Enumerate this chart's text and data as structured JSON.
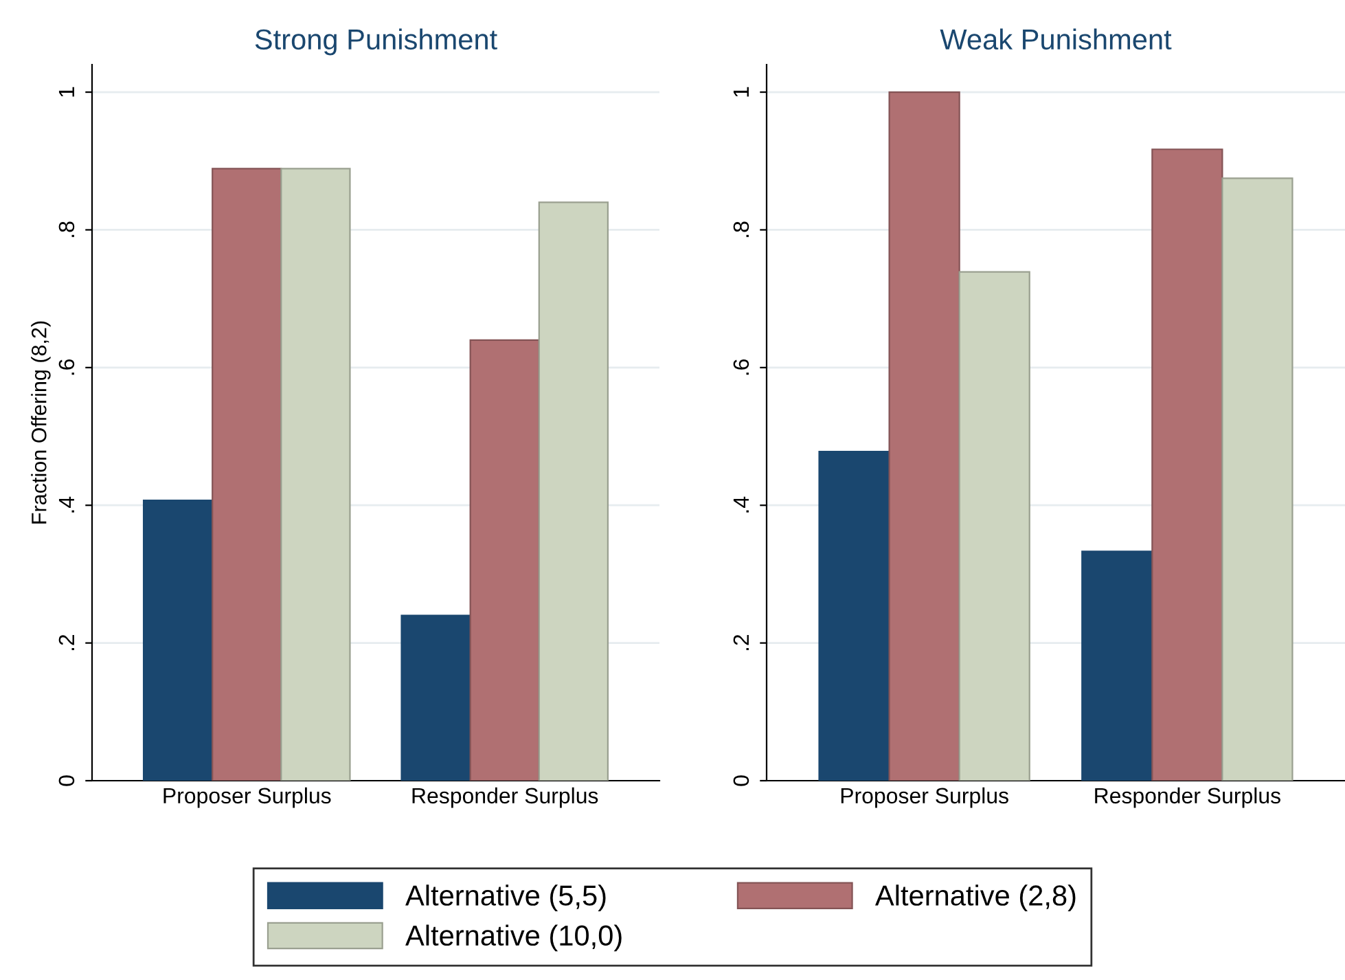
{
  "chart_data": [
    {
      "type": "bar",
      "title": "Strong Punishment",
      "ylabel": "Fraction Offering (8,2)",
      "categories": [
        "Proposer Surplus",
        "Responder Surplus"
      ],
      "series": [
        {
          "name": "Alternative (5,5)",
          "color": "#1a476f",
          "values": [
            0.407,
            0.24
          ]
        },
        {
          "name": "Alternative (2,8)",
          "color": "#b07072",
          "values": [
            0.889,
            0.64
          ]
        },
        {
          "name": "Alternative (10,0)",
          "color": "#cdd5c0",
          "values": [
            0.889,
            0.84
          ]
        }
      ],
      "ylim": [
        0,
        1.04
      ],
      "yticks": [
        {
          "value": 0,
          "label": "0"
        },
        {
          "value": 0.2,
          "label": ".2"
        },
        {
          "value": 0.4,
          "label": ".4"
        },
        {
          "value": 0.6,
          "label": ".6"
        },
        {
          "value": 0.8,
          "label": ".8"
        },
        {
          "value": 1,
          "label": "1"
        }
      ],
      "grid": "y",
      "legend": "bottom"
    },
    {
      "type": "bar",
      "title": "Weak Punishment",
      "categories": [
        "Proposer Surplus",
        "Responder Surplus"
      ],
      "series": [
        {
          "color": "#1a476f",
          "values": [
            0.478,
            0.333
          ]
        },
        {
          "color": "#b07072",
          "values": [
            1.0,
            0.917
          ]
        },
        {
          "color": "#cdd5c0",
          "values": [
            0.739,
            0.875
          ]
        }
      ],
      "ylim": [
        0,
        1.04
      ],
      "yticks": [
        {
          "value": 0,
          "label": "0"
        },
        {
          "value": 0.2,
          "label": ".2"
        },
        {
          "value": 0.4,
          "label": ".4"
        },
        {
          "value": 0.6,
          "label": ".6"
        },
        {
          "value": 0.8,
          "label": ".8"
        },
        {
          "value": 1,
          "label": "1"
        }
      ],
      "grid": "y"
    }
  ]
}
